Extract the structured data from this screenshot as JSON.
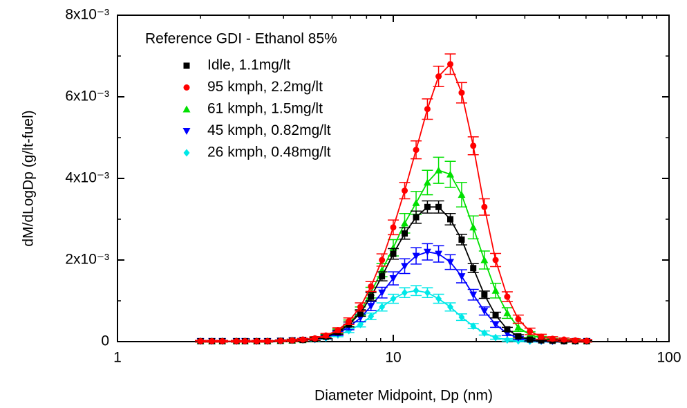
{
  "chart_data": {
    "type": "scatter-errorbar",
    "xlabel": "Diameter Midpoint, Dp (nm)",
    "ylabel": "dM/dLogDp (g/lt-fuel)",
    "legend_title": "Reference GDI - Ethanol 85%",
    "legend": "upper left",
    "xscale": "log",
    "xlim": [
      1,
      100
    ],
    "xticks": [
      1,
      10,
      100
    ],
    "xminorticks": [
      2,
      3,
      4,
      5,
      6,
      7,
      8,
      9,
      20,
      30,
      40,
      50,
      60,
      70,
      80,
      90
    ],
    "ylim": [
      0,
      0.008
    ],
    "yticks": [
      0,
      {
        "value": 0.002,
        "label": "2x10⁻³"
      },
      {
        "value": 0.004,
        "label": "4x10⁻³"
      },
      {
        "value": 0.006,
        "label": "6x10⁻³"
      },
      {
        "value": 0.008,
        "label": "8x10⁻³"
      }
    ],
    "yminorticks": [
      0.001,
      0.003,
      0.005,
      0.007
    ],
    "x": [
      2.0,
      2.2,
      2.4,
      2.7,
      2.9,
      3.2,
      3.5,
      3.9,
      4.3,
      4.7,
      5.2,
      5.7,
      6.3,
      6.9,
      7.6,
      8.3,
      9.1,
      10.0,
      11.0,
      12.1,
      13.3,
      14.6,
      16.1,
      17.7,
      19.5,
      21.4,
      23.5,
      25.9,
      28.4,
      31.3,
      34.4,
      37.8,
      41.6,
      45.7,
      50.3
    ],
    "series": [
      {
        "name": "Idle, 1.1mg/lt",
        "color": "#000000",
        "marker": "square",
        "values": [
          1e-05,
          1e-05,
          1e-05,
          1e-05,
          1e-05,
          1e-05,
          1e-05,
          2e-05,
          3e-05,
          4e-05,
          6e-05,
          0.00012,
          0.00023,
          0.00042,
          0.0007,
          0.0011,
          0.0016,
          0.00215,
          0.00265,
          0.00305,
          0.0033,
          0.0033,
          0.003,
          0.0025,
          0.0018,
          0.00115,
          0.00065,
          0.0003,
          0.00013,
          5e-05,
          3e-05,
          2e-05,
          1e-05,
          1e-05,
          1e-05
        ],
        "errors": [
          2e-05,
          2e-05,
          2e-05,
          2e-05,
          2e-05,
          2e-05,
          2e-05,
          2e-05,
          2e-05,
          3e-05,
          3e-05,
          4e-05,
          5e-05,
          6e-05,
          8e-05,
          0.0001,
          0.00011,
          0.00013,
          0.00014,
          0.00015,
          0.00015,
          0.00015,
          0.00014,
          0.00013,
          0.00011,
          9e-05,
          7e-05,
          5e-05,
          4e-05,
          3e-05,
          2e-05,
          2e-05,
          2e-05,
          2e-05,
          2e-05
        ]
      },
      {
        "name": "95 kmph, 2.2mg/lt",
        "color": "#ff0000",
        "marker": "circle",
        "values": [
          1e-05,
          1e-05,
          1e-05,
          1e-05,
          1e-05,
          1e-05,
          1e-05,
          2e-05,
          3e-05,
          5e-05,
          8e-05,
          0.00015,
          0.00028,
          0.0005,
          0.00085,
          0.00135,
          0.002,
          0.0028,
          0.0037,
          0.0047,
          0.0057,
          0.0065,
          0.0068,
          0.0061,
          0.0048,
          0.0033,
          0.002,
          0.0011,
          0.00055,
          0.00025,
          0.00012,
          7e-05,
          5e-05,
          3e-05,
          2e-05
        ],
        "errors": [
          2e-05,
          2e-05,
          2e-05,
          2e-05,
          2e-05,
          2e-05,
          2e-05,
          2e-05,
          3e-05,
          3e-05,
          4e-05,
          5e-05,
          6e-05,
          8e-05,
          0.0001,
          0.00012,
          0.00015,
          0.00018,
          0.0002,
          0.00022,
          0.00025,
          0.00025,
          0.00025,
          0.00025,
          0.00022,
          0.0002,
          0.00016,
          0.00012,
          0.0001,
          8e-05,
          6e-05,
          5e-05,
          4e-05,
          4e-05,
          3e-05
        ]
      },
      {
        "name": "61 kmph, 1.5mg/lt",
        "color": "#00e000",
        "marker": "triangle-up",
        "values": [
          1e-05,
          1e-05,
          1e-05,
          1e-05,
          1e-05,
          1e-05,
          1e-05,
          2e-05,
          3e-05,
          4e-05,
          7e-05,
          0.00013,
          0.00025,
          0.00045,
          0.00075,
          0.0012,
          0.00175,
          0.0023,
          0.0029,
          0.0034,
          0.0039,
          0.0042,
          0.0041,
          0.0036,
          0.0028,
          0.002,
          0.00125,
          0.0007,
          0.00035,
          0.00017,
          8e-05,
          4e-05,
          3e-05,
          2e-05,
          1e-05
        ],
        "errors": [
          2e-05,
          2e-05,
          2e-05,
          2e-05,
          2e-05,
          2e-05,
          2e-05,
          2e-05,
          3e-05,
          3e-05,
          4e-05,
          5e-05,
          6e-05,
          8e-05,
          0.0001,
          0.00013,
          0.00016,
          0.0002,
          0.00024,
          0.00028,
          0.0003,
          0.00032,
          0.00032,
          0.0003,
          0.00028,
          0.00022,
          0.00018,
          0.00013,
          0.0001,
          7e-05,
          5e-05,
          4e-05,
          3e-05,
          3e-05,
          2e-05
        ]
      },
      {
        "name": "45 kmph, 0.82mg/lt",
        "color": "#0000ff",
        "marker": "triangle-down",
        "values": [
          1e-05,
          1e-05,
          1e-05,
          1e-05,
          1e-05,
          1e-05,
          1e-05,
          2e-05,
          3e-05,
          4e-05,
          6e-05,
          0.00011,
          0.0002,
          0.00036,
          0.00058,
          0.00087,
          0.0012,
          0.00155,
          0.00185,
          0.0021,
          0.0022,
          0.00215,
          0.00195,
          0.0016,
          0.00115,
          0.00075,
          0.00042,
          0.0002,
          9e-05,
          4e-05,
          2e-05,
          1e-05,
          1e-05,
          1e-05,
          1e-05
        ],
        "errors": [
          2e-05,
          2e-05,
          2e-05,
          2e-05,
          2e-05,
          2e-05,
          2e-05,
          2e-05,
          2e-05,
          3e-05,
          3e-05,
          4e-05,
          5e-05,
          7e-05,
          9e-05,
          0.00011,
          0.00013,
          0.00016,
          0.00018,
          0.0002,
          0.0002,
          0.0002,
          0.00018,
          0.00016,
          0.00013,
          0.0001,
          7e-05,
          5e-05,
          4e-05,
          3e-05,
          2e-05,
          2e-05,
          2e-05,
          2e-05,
          2e-05
        ]
      },
      {
        "name": "26 kmph, 0.48mg/lt",
        "color": "#00e8e8",
        "marker": "diamond",
        "values": [
          1e-05,
          1e-05,
          1e-05,
          1e-05,
          1e-05,
          1e-05,
          1e-05,
          2e-05,
          3e-05,
          4e-05,
          5e-05,
          9e-05,
          0.00016,
          0.00027,
          0.00042,
          0.00062,
          0.00085,
          0.00105,
          0.0012,
          0.00125,
          0.0012,
          0.00105,
          0.00085,
          0.0006,
          0.00038,
          0.00021,
          0.0001,
          4e-05,
          2e-05,
          1e-05,
          1e-05,
          1e-05,
          1e-05,
          1e-05,
          1e-05
        ],
        "errors": [
          2e-05,
          2e-05,
          2e-05,
          2e-05,
          2e-05,
          2e-05,
          2e-05,
          2e-05,
          2e-05,
          2e-05,
          3e-05,
          3e-05,
          4e-05,
          5e-05,
          6e-05,
          8e-05,
          0.0001,
          0.00011,
          0.00012,
          0.00012,
          0.00012,
          0.00011,
          0.0001,
          8e-05,
          6e-05,
          5e-05,
          4e-05,
          3e-05,
          2e-05,
          2e-05,
          2e-05,
          2e-05,
          2e-05,
          2e-05,
          2e-05
        ]
      }
    ]
  }
}
